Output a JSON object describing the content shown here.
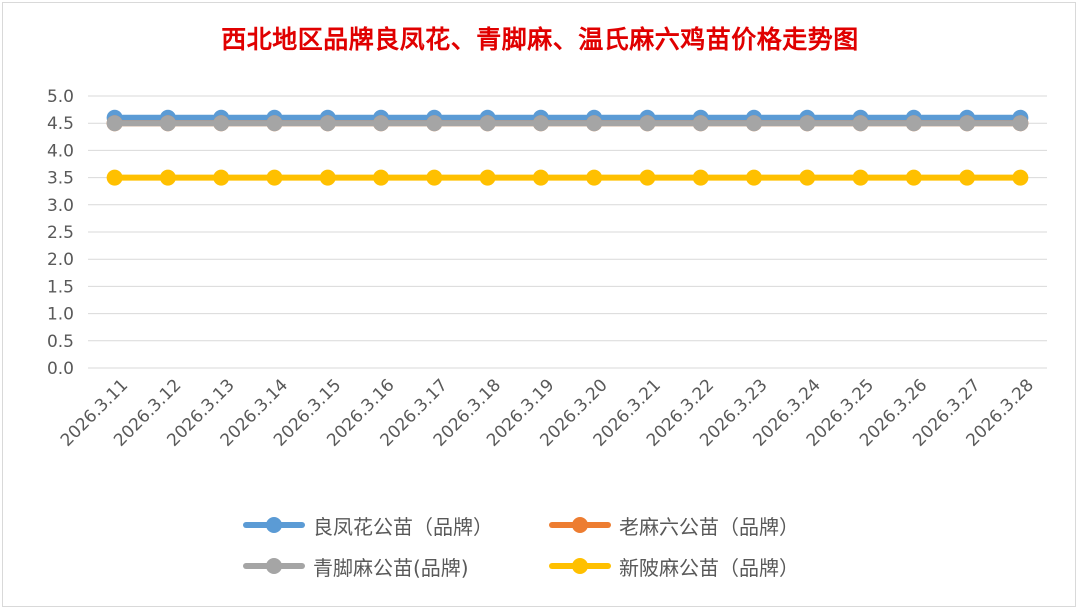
{
  "chart_data": {
    "type": "line",
    "title": "西北地区品牌良凤花、青脚麻、温氏麻六鸡苗价格走势图",
    "xlabel": "",
    "ylabel": "",
    "ylim": [
      0,
      5
    ],
    "yticks": [
      "0.0",
      "0.5",
      "1.0",
      "1.5",
      "2.0",
      "2.5",
      "3.0",
      "3.5",
      "4.0",
      "4.5",
      "5.0"
    ],
    "grid": true,
    "legend_position": "bottom",
    "categories": [
      "2026.3.11",
      "2026.3.12",
      "2026.3.13",
      "2026.3.14",
      "2026.3.15",
      "2026.3.16",
      "2026.3.17",
      "2026.3.18",
      "2026.3.19",
      "2026.3.20",
      "2026.3.21",
      "2026.3.22",
      "2026.3.23",
      "2026.3.24",
      "2026.3.25",
      "2026.3.26",
      "2026.3.27",
      "2026.3.28"
    ],
    "series": [
      {
        "name": "良凤花公苗（品牌）",
        "color": "#5b9bd5",
        "values": [
          4.6,
          4.6,
          4.6,
          4.6,
          4.6,
          4.6,
          4.6,
          4.6,
          4.6,
          4.6,
          4.6,
          4.6,
          4.6,
          4.6,
          4.6,
          4.6,
          4.6,
          4.6
        ]
      },
      {
        "name": "老麻六公苗（品牌）",
        "color": "#ed7d31",
        "values": [
          4.5,
          4.5,
          4.5,
          4.5,
          4.5,
          4.5,
          4.5,
          4.5,
          4.5,
          4.5,
          4.5,
          4.5,
          4.5,
          4.5,
          4.5,
          4.5,
          4.5,
          4.5
        ]
      },
      {
        "name": "青脚麻公苗(品牌)",
        "color": "#a5a5a5",
        "values": [
          4.5,
          4.5,
          4.5,
          4.5,
          4.5,
          4.5,
          4.5,
          4.5,
          4.5,
          4.5,
          4.5,
          4.5,
          4.5,
          4.5,
          4.5,
          4.5,
          4.5,
          4.5
        ]
      },
      {
        "name": "新陂麻公苗（品牌）",
        "color": "#ffc000",
        "values": [
          3.5,
          3.5,
          3.5,
          3.5,
          3.5,
          3.5,
          3.5,
          3.5,
          3.5,
          3.5,
          3.5,
          3.5,
          3.5,
          3.5,
          3.5,
          3.5,
          3.5,
          3.5
        ]
      }
    ]
  }
}
